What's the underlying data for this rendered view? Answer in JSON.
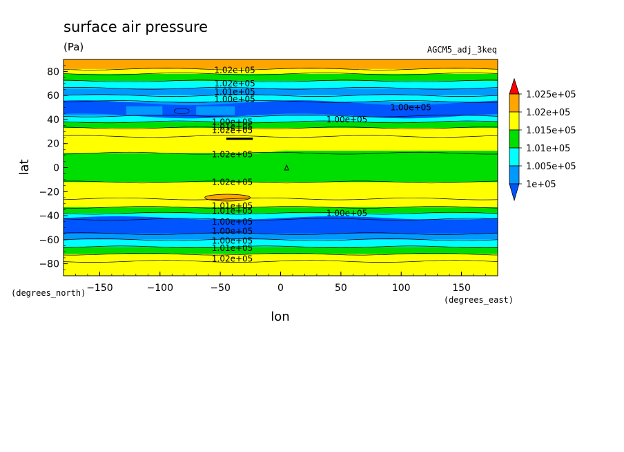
{
  "chart_data": {
    "type": "heatmap",
    "title": "surface air pressure",
    "units": "(Pa)",
    "dataset_label": "AGCM5_adj_3keq",
    "xlabel": "lon",
    "ylabel": "lat",
    "x_unit_label": "(degrees_east)",
    "y_unit_label": "(degrees_north)",
    "xlim": [
      -180,
      180
    ],
    "ylim": [
      -90,
      90
    ],
    "x_ticks": [
      -150,
      -100,
      -50,
      0,
      50,
      100,
      150
    ],
    "x_tick_labels": [
      "−150",
      "−100",
      "−50",
      "0",
      "50",
      "100",
      "150"
    ],
    "y_ticks": [
      -80,
      -60,
      -40,
      -20,
      0,
      20,
      40,
      60,
      80
    ],
    "y_tick_labels": [
      "−80",
      "−60",
      "−40",
      "−20",
      "0",
      "20",
      "40",
      "60",
      "80"
    ],
    "levels": [
      100000,
      100500,
      101000,
      101500,
      102000,
      102500
    ],
    "colorbar": {
      "labels": [
        "1.025e+05",
        "1.02e+05",
        "1.015e+05",
        "1.01e+05",
        "1.005e+05",
        "1e+05"
      ],
      "colors": [
        "#ffa500",
        "#ffff00",
        "#00dd00",
        "#00ffff",
        "#0099ff"
      ],
      "over_color": "#ff0000",
      "under_color": "#0055ff"
    },
    "colors": {
      "below_1e05": "#0055ff",
      "1e05_1.005e05": "#0099ff",
      "1.005e05_1.01e05": "#00ffff",
      "1.01e05_1.015e05": "#00dd00",
      "1.015e05_1.02e05": "#ffff00",
      "1.02e05_1.025e05": "#ffa500"
    },
    "zonal_bands": [
      {
        "lat": [
          82,
          90
        ],
        "value": 102100
      },
      {
        "lat": [
          78,
          82
        ],
        "value": 101700
      },
      {
        "lat": [
          72,
          78
        ],
        "value": 101200
      },
      {
        "lat": [
          66,
          72
        ],
        "value": 100700
      },
      {
        "lat": [
          60,
          66
        ],
        "value": 100200
      },
      {
        "lat": [
          55,
          60
        ],
        "value": 100600
      },
      {
        "lat": [
          43,
          55
        ],
        "value": 100200
      },
      {
        "lat": [
          38,
          43
        ],
        "value": 100700
      },
      {
        "lat": [
          33,
          38
        ],
        "value": 101200
      },
      {
        "lat": [
          26,
          33
        ],
        "value": 101700
      },
      {
        "lat": [
          12,
          26
        ],
        "value": 101700
      },
      {
        "lat": [
          -12,
          12
        ],
        "value": 101200
      },
      {
        "lat": [
          -26,
          -12
        ],
        "value": 101700
      },
      {
        "lat": [
          -33,
          -26
        ],
        "value": 101700
      },
      {
        "lat": [
          -38,
          -33
        ],
        "value": 101200
      },
      {
        "lat": [
          -43,
          -38
        ],
        "value": 100700
      },
      {
        "lat": [
          -55,
          -43
        ],
        "value": 99800
      },
      {
        "lat": [
          -60,
          -55
        ],
        "value": 100200
      },
      {
        "lat": [
          -66,
          -60
        ],
        "value": 100700
      },
      {
        "lat": [
          -72,
          -66
        ],
        "value": 101200
      },
      {
        "lat": [
          -78,
          -72
        ],
        "value": 101700
      },
      {
        "lat": [
          -90,
          -78
        ],
        "value": 101700
      }
    ],
    "contour_labels": [
      {
        "text": "1.02e+05",
        "lon": -38,
        "lat": 81
      },
      {
        "text": "1.02e+05",
        "lon": -38,
        "lat": 70
      },
      {
        "text": "1.01e+05",
        "lon": -38,
        "lat": 63
      },
      {
        "text": "1.00e+05",
        "lon": -38,
        "lat": 57
      },
      {
        "text": "1.00e+05",
        "lon": 108,
        "lat": 50
      },
      {
        "text": "1.00e+05",
        "lon": 55,
        "lat": 40
      },
      {
        "text": "1.00e+05",
        "lon": -40,
        "lat": 38
      },
      {
        "text": "1.01e+05",
        "lon": -40,
        "lat": 34
      },
      {
        "text": "1.02e+05",
        "lon": -40,
        "lat": 31
      },
      {
        "text": "1.02e+05",
        "lon": -40,
        "lat": 11
      },
      {
        "text": "1.02e+05",
        "lon": -40,
        "lat": -12
      },
      {
        "text": "1.01e+05",
        "lon": -40,
        "lat": -32
      },
      {
        "text": "1.01e+05",
        "lon": -40,
        "lat": -36
      },
      {
        "text": "1.00e+05",
        "lon": 55,
        "lat": -38
      },
      {
        "text": "1.00e+05",
        "lon": -40,
        "lat": -45
      },
      {
        "text": "1.00e+05",
        "lon": -40,
        "lat": -53
      },
      {
        "text": "1.00e+05",
        "lon": -40,
        "lat": -61
      },
      {
        "text": "1.01e+05",
        "lon": -40,
        "lat": -67
      },
      {
        "text": "1.02e+05",
        "lon": -40,
        "lat": -76
      }
    ]
  }
}
